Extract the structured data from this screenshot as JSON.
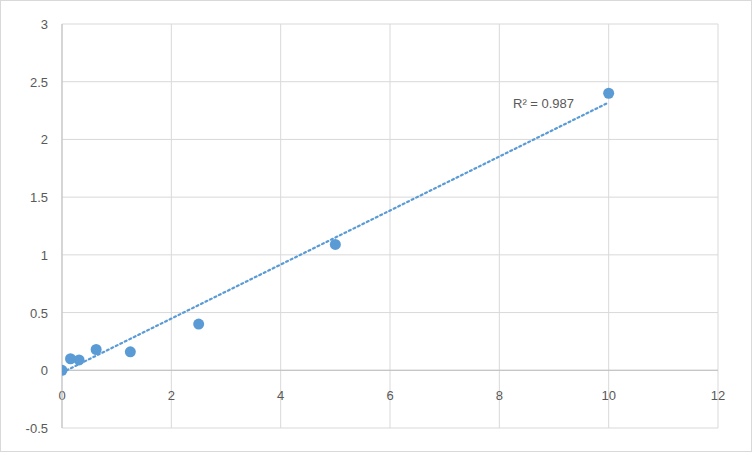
{
  "chart_data": {
    "type": "scatter",
    "annotations": [
      "R² = 0.987"
    ],
    "series": [
      {
        "type": "scatter",
        "color": "#5b9bd5",
        "marker": "circle",
        "x": [
          0,
          0.156,
          0.3125,
          0.625,
          1.25,
          2.5,
          5,
          10
        ],
        "values": [
          0,
          0.1,
          0.09,
          0.18,
          0.16,
          0.4,
          1.09,
          2.4
        ]
      },
      {
        "type": "line",
        "color": "#5b9bd5",
        "line_style": "dotted",
        "x": [
          0,
          10
        ],
        "values": [
          -0.02,
          2.32
        ]
      }
    ],
    "xlim": [
      0,
      12
    ],
    "xticks": [
      0,
      2,
      4,
      6,
      8,
      10,
      12
    ],
    "ylim": [
      -0.5,
      3
    ],
    "yticks": [
      -0.5,
      0,
      0.5,
      1,
      1.5,
      2,
      2.5,
      3
    ],
    "grid": true
  }
}
